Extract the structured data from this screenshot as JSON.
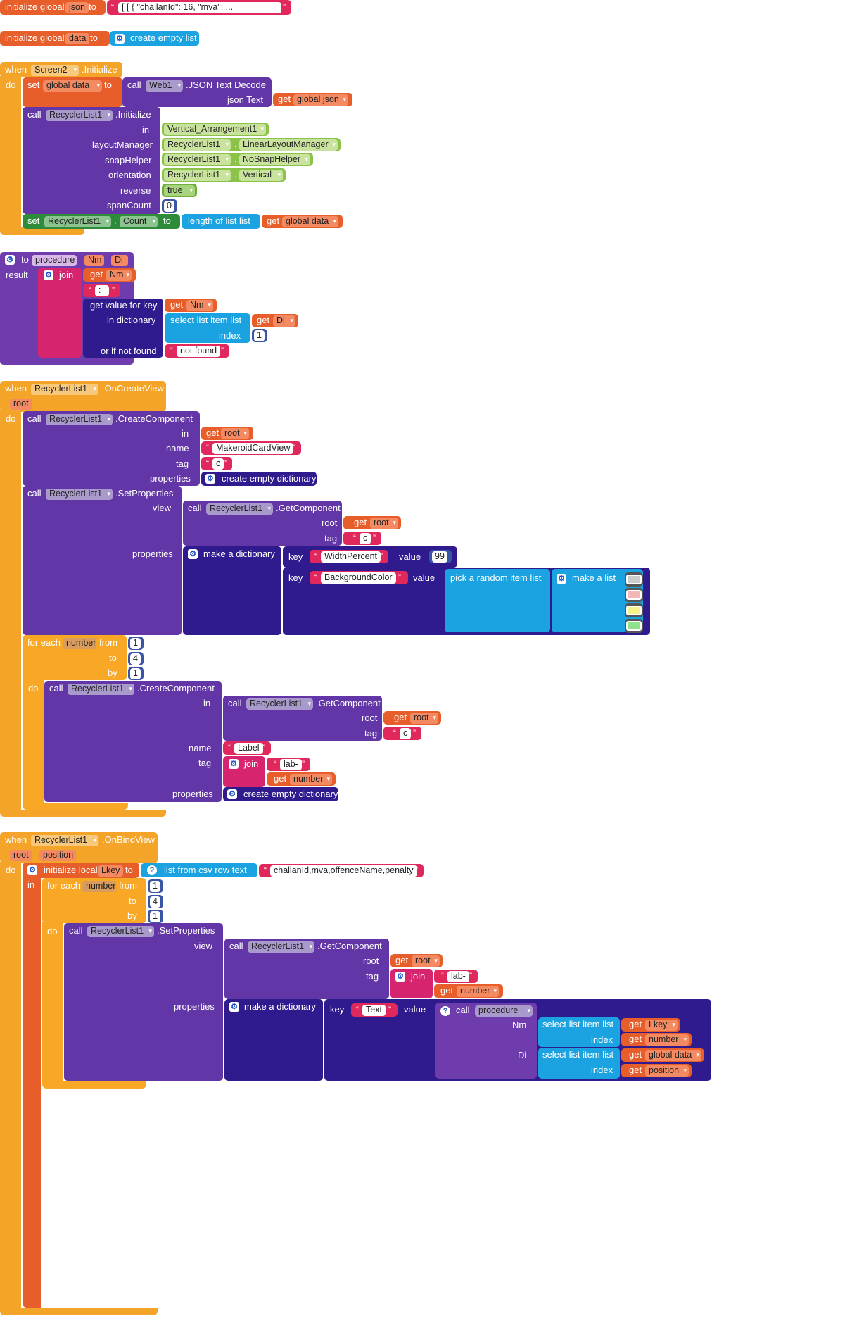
{
  "b1": {
    "init_global": "initialize global",
    "name": "json",
    "to": "to",
    "value": "[ [ {    \"challanId\": 16,     \"mva\": ..."
  },
  "b2": {
    "init_global": "initialize global",
    "name": "data",
    "to": "to",
    "create_empty_list": "create empty list"
  },
  "b3": {
    "when": "when",
    "screen": "Screen2",
    "event": ".Initialize",
    "do": "do",
    "set": "set",
    "set_var": "global data",
    "set_to": "to",
    "call": "call",
    "web": "Web1",
    "decode": ".JSON Text Decode",
    "json_text": "json Text",
    "get": "get",
    "get_var": "global json",
    "call2": "call",
    "rl": "RecyclerList1",
    "init": ".Initialize",
    "in": "in",
    "in_val": "Vertical_Arrangement1",
    "layoutManager": "layoutManager",
    "lm_comp": "RecyclerList1",
    "lm_dot": ".",
    "lm_val": "LinearLayoutManager",
    "snapHelper": "snapHelper",
    "sh_comp": "RecyclerList1",
    "sh_dot": ".",
    "sh_val": "NoSnapHelper",
    "orientation": "orientation",
    "or_comp": "RecyclerList1",
    "or_dot": ".",
    "or_val": "Vertical",
    "reverse": "reverse",
    "rev_val": "true",
    "spanCount": "spanCount",
    "span_val": "0",
    "set2": "set",
    "set2_comp": "RecyclerList1",
    "set2_dot": ".",
    "set2_prop": "Count",
    "set2_to": "to",
    "length": "length of list  list",
    "get2": "get",
    "get2_var": "global data"
  },
  "b4": {
    "to": "to",
    "name": "procedure",
    "p1": "Nm",
    "p2": "Di",
    "result": "result",
    "join": "join",
    "get": "get",
    "get_var": "Nm",
    "colon": " : ",
    "gvk": "get value for key",
    "get2": "get",
    "get2_var": "Nm",
    "in_dict": "in dictionary",
    "sli": "select list item  list",
    "get3": "get",
    "get3_var": "Di",
    "index": "index",
    "index_val": "1",
    "not_found_label": "or if not found",
    "not_found": "not found"
  },
  "b5": {
    "when": "when",
    "comp": "RecyclerList1",
    "event": ".OnCreateView",
    "param": "root",
    "do": "do",
    "call": "call",
    "cc_comp": "RecyclerList1",
    "cc": ".CreateComponent",
    "in": "in",
    "get": "get",
    "get_var": "root",
    "name": "name",
    "name_val": "MakeroidCardView",
    "tag": "tag",
    "tag_val": "c",
    "properties": "properties",
    "ced": "create empty dictionary",
    "call2": "call",
    "sp_comp": "RecyclerList1",
    "sp": ".SetProperties",
    "view": "view",
    "call3": "call",
    "gc_comp": "RecyclerList1",
    "gc": ".GetComponent",
    "root": "root",
    "get2": "get",
    "get2_var": "root",
    "tag2": "tag",
    "tag2_val": "c",
    "properties2": "properties",
    "mad": "make a dictionary",
    "key": "key",
    "key1": "WidthPercent",
    "value": "value",
    "value1": "99",
    "key2": "key",
    "key2_val": "BackgroundColor",
    "value2": "value",
    "pick": "pick a random item  list",
    "mal": "make a list",
    "swatches": [
      "#cccccc",
      "#f4b7b7",
      "#f9f28c",
      "#8fe28a"
    ],
    "foreach": "for each",
    "var": "number",
    "from": "from",
    "from_val": "1",
    "to": "to",
    "to_val": "4",
    "by": "by",
    "by_val": "1",
    "do2": "do",
    "call4": "call",
    "cc2_comp": "RecyclerList1",
    "cc2": ".CreateComponent",
    "in2": "in",
    "call5": "call",
    "gc2_comp": "RecyclerList1",
    "gc2": ".GetComponent",
    "root2": "root",
    "get3": "get",
    "get3_var": "root",
    "tag3": "tag",
    "tag3_val": "c",
    "name2": "name",
    "name2_val": "Label",
    "tag4": "tag",
    "join": "join",
    "lab": "lab-",
    "get4": "get",
    "get4_var": "number",
    "properties3": "properties",
    "ced2": "create empty dictionary"
  },
  "b6": {
    "when": "when",
    "comp": "RecyclerList1",
    "event": ".OnBindView",
    "param1": "root",
    "param2": "position",
    "do": "do",
    "init_local": "initialize local",
    "lkey": "Lkey",
    "to": "to",
    "csv": "list from csv row  text",
    "csv_val": "challanId,mva,offenceName,penalty",
    "in": "in",
    "foreach": "for each",
    "var": "number",
    "from": "from",
    "from_val": "1",
    "to2": "to",
    "to_val": "4",
    "by": "by",
    "by_val": "1",
    "do2": "do",
    "call": "call",
    "sp_comp": "RecyclerList1",
    "sp": ".SetProperties",
    "view": "view",
    "call2": "call",
    "gc_comp": "RecyclerList1",
    "gc": ".GetComponent",
    "root": "root",
    "get": "get",
    "get_var": "root",
    "tag": "tag",
    "join": "join",
    "lab": "lab-",
    "get2": "get",
    "get2_var": "number",
    "properties": "properties",
    "mad": "make a dictionary",
    "key": "key",
    "key_val": "Text",
    "value": "value",
    "call3": "call",
    "proc": "procedure",
    "nm": "Nm",
    "sli": "select list item  list",
    "get3": "get",
    "get3_var": "Lkey",
    "index": "index",
    "get4": "get",
    "get4_var": "number",
    "di": "Di",
    "sli2": "select list item  list",
    "get5": "get",
    "get5_var": "global data",
    "index2": "index",
    "get6": "get",
    "get6_var": "position"
  }
}
